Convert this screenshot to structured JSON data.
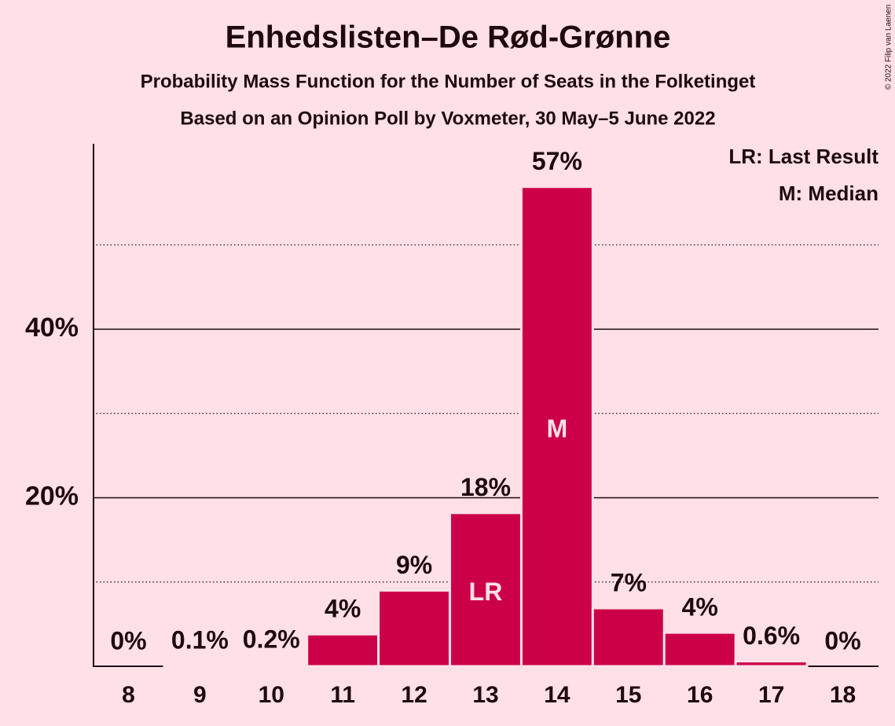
{
  "chart_data": {
    "type": "bar",
    "title": "Enhedslisten–De Rød-Grønne",
    "subtitle": "Probability Mass Function for the Number of Seats in the Folketinget",
    "subtitle2": "Based on an Opinion Poll by Voxmeter, 30 May–5 June 2022",
    "copyright": "© 2022 Filip van Laenen",
    "categories": [
      8,
      9,
      10,
      11,
      12,
      13,
      14,
      15,
      16,
      17,
      18
    ],
    "values": [
      0,
      0.1,
      0.2,
      3.8,
      9.0,
      18.2,
      56.9,
      6.9,
      4.0,
      0.6,
      0
    ],
    "value_labels": [
      "0%",
      "0.1%",
      "0.2%",
      "4%",
      "9%",
      "18%",
      "57%",
      "7%",
      "4%",
      "0.6%",
      "0%"
    ],
    "color": "#cc0049",
    "ylim": [
      0,
      62
    ],
    "yticks": [
      {
        "value": 20,
        "label": "20%"
      },
      {
        "value": 40,
        "label": "40%"
      }
    ],
    "minor_yticks": [
      10,
      30,
      50
    ],
    "grid": true,
    "annotations": [
      {
        "x": 13,
        "label": "LR"
      },
      {
        "x": 14,
        "label": "M"
      }
    ],
    "legend": [
      "LR: Last Result",
      "M: Median"
    ],
    "legend_position": "upper right"
  }
}
